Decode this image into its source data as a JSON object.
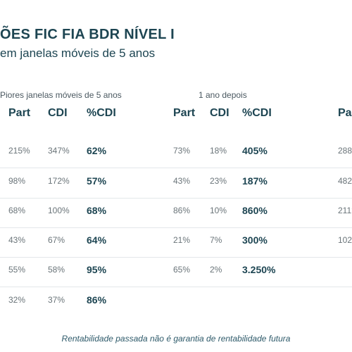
{
  "header": {
    "title": "ÕES FIC FIA BDR NÍVEL I",
    "subtitle": "em janelas móveis de 5 anos"
  },
  "groups": {
    "worst_windows": "Piores janelas móveis de 5 anos",
    "one_year_after": "1 ano depois"
  },
  "columns": {
    "g1": [
      "Part",
      "CDI",
      "%CDI"
    ],
    "g2": [
      "Part",
      "CDI",
      "%CDI"
    ],
    "g3": [
      "Pa"
    ]
  },
  "rows": [
    {
      "g1_part": "215%",
      "g1_cdi": "347%",
      "g1_pct": "62%",
      "g2_part": "73%",
      "g2_cdi": "18%",
      "g2_pct": "405%",
      "g3_part": "288"
    },
    {
      "g1_part": "98%",
      "g1_cdi": "172%",
      "g1_pct": "57%",
      "g2_part": "43%",
      "g2_cdi": "23%",
      "g2_pct": "187%",
      "g3_part": "482"
    },
    {
      "g1_part": "68%",
      "g1_cdi": "100%",
      "g1_pct": "68%",
      "g2_part": "86%",
      "g2_cdi": "10%",
      "g2_pct": "860%",
      "g3_part": "211°"
    },
    {
      "g1_part": "43%",
      "g1_cdi": "67%",
      "g1_pct": "64%",
      "g2_part": "21%",
      "g2_cdi": "7%",
      "g2_pct": "300%",
      "g3_part": "102"
    },
    {
      "g1_part": "55%",
      "g1_cdi": "58%",
      "g1_pct": "95%",
      "g2_part": "65%",
      "g2_cdi": "2%",
      "g2_pct": "3.250%",
      "g3_part": ""
    },
    {
      "g1_part": "32%",
      "g1_cdi": "37%",
      "g1_pct": "86%",
      "g2_part": "",
      "g2_cdi": "",
      "g2_pct": "",
      "g3_part": ""
    }
  ],
  "footer": {
    "disclaimer": "Rentabilidade passada não é garantia de rentabilidade futura"
  },
  "colors": {
    "heading": "#1d4552",
    "muted": "#6a7479",
    "divider": "#e3e7ea"
  }
}
